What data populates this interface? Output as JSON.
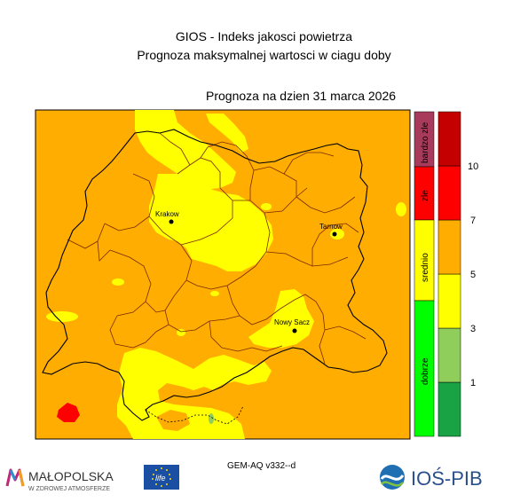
{
  "header": {
    "title": "GIOS - Indeks jakosci powietrza",
    "subtitle": "Prognoza maksymalnej wartosci w ciagu doby",
    "forecast_date": "Prognoza na dzien  31 marca 2026",
    "model": "GEM-AQ v332--d"
  },
  "cities": [
    {
      "name": "Krakow"
    },
    {
      "name": "Tarnow"
    },
    {
      "name": "Nowy Sacz"
    }
  ],
  "category_bar": [
    {
      "label": "bardzo zle",
      "color": "#a83a5c"
    },
    {
      "label": "zle",
      "color": "#ff0000"
    },
    {
      "label": "srednio",
      "color": "#ffff00"
    },
    {
      "label": "dobrze",
      "color": "#00ff00"
    }
  ],
  "colorbar": {
    "levels": [
      {
        "color": "#19a345"
      },
      {
        "color": "#8fce5a"
      },
      {
        "color": "#ffff00"
      },
      {
        "color": "#ffad00"
      },
      {
        "color": "#ff0000"
      },
      {
        "color": "#c40000"
      }
    ],
    "ticks": [
      "1",
      "3",
      "5",
      "7",
      "10"
    ]
  },
  "map_colors": {
    "background": "#ffad00",
    "moderate": "#ffff00",
    "bad": "#ff0000",
    "good": "#8fce5a"
  },
  "logos": {
    "malopolska_main": "MAŁOPOLSKA",
    "malopolska_sub": "W ZDROWEJ ATMOSFERZE",
    "life": "life",
    "ios": "IOŚ-PIB"
  }
}
